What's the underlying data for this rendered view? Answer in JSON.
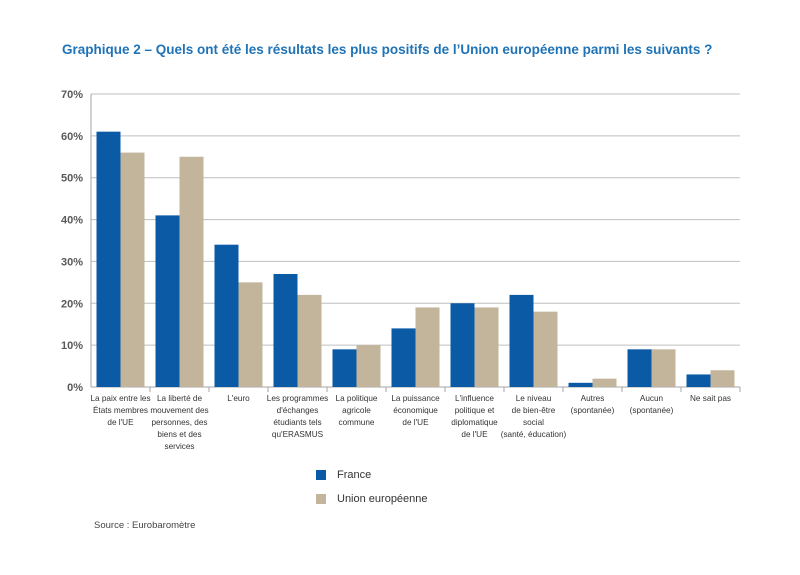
{
  "title": "Graphique 2 – Quels ont été les résultats les plus positifs de l’Union européenne parmi les suivants ?",
  "source": "Source : Eurobaromètre",
  "colors": {
    "france": "#0b5aa6",
    "eu": "#c2b59b",
    "grid": "#bfbfbf",
    "axis": "#a6a6a6"
  },
  "chart_data": {
    "type": "bar",
    "title": "Graphique 2 – Quels ont été les résultats les plus positifs de l’Union européenne parmi les suivants ?",
    "categories": [
      [
        "La paix entre les",
        "États membres",
        "de l'UE"
      ],
      [
        "La liberté de",
        "mouvement des",
        "personnes, des",
        "biens et des",
        "services"
      ],
      [
        "L'euro"
      ],
      [
        "Les programmes",
        "d'échanges",
        "étudiants tels",
        "qu'ERASMUS"
      ],
      [
        "La politique",
        "agricole",
        "commune"
      ],
      [
        "La puissance",
        "économique",
        "de l'UE"
      ],
      [
        "L'influence",
        "politique et",
        "diplomatique",
        "de l'UE"
      ],
      [
        "Le niveau",
        "de bien-être",
        "social",
        "(santé, éducation)"
      ],
      [
        "Autres",
        "(spontanée)"
      ],
      [
        "Aucun",
        "(spontanée)"
      ],
      [
        "Ne sait pas"
      ]
    ],
    "series": [
      {
        "name": "France",
        "values": [
          61,
          41,
          34,
          27,
          9,
          14,
          20,
          22,
          1,
          9,
          3
        ]
      },
      {
        "name": "Union européenne",
        "values": [
          56,
          55,
          25,
          22,
          10,
          19,
          19,
          18,
          2,
          9,
          4
        ]
      }
    ],
    "ylim": [
      0,
      70
    ],
    "yticks": [
      "0%",
      "10%",
      "20%",
      "30%",
      "40%",
      "50%",
      "60%",
      "70%"
    ],
    "grid": true,
    "legend": "bottom-center"
  }
}
